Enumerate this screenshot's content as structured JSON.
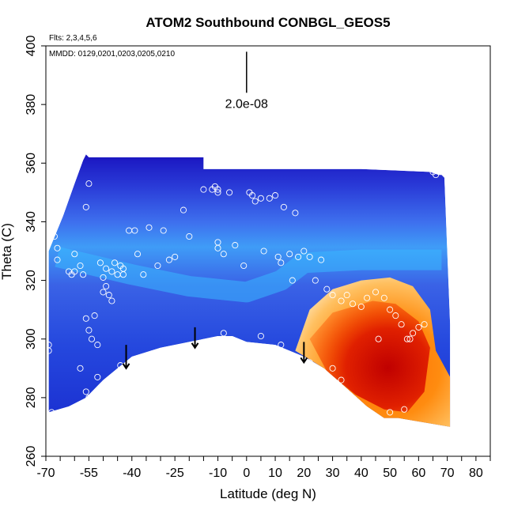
{
  "chart_data": {
    "type": "heatmap",
    "title": "ATOM2 Southbound CONBGL_GEOS5",
    "flights_label": "Flts: 2,3,4,5,6",
    "dates_label": "MMDD: 0129,0201,0203,0205,0210",
    "xlabel": "Latitude (deg N)",
    "ylabel": "Theta (C)",
    "xlim": [
      -70,
      85
    ],
    "ylim": [
      260,
      400
    ],
    "x_ticks": [
      -70,
      -55,
      -40,
      -25,
      -10,
      0,
      10,
      20,
      30,
      40,
      50,
      60,
      70,
      80
    ],
    "x_minor_ticks": [
      -65,
      -60,
      -50,
      -45,
      -35,
      -30,
      -20,
      -15,
      -5,
      5,
      15,
      25,
      35,
      45,
      55,
      65,
      75,
      85
    ],
    "y_ticks": [
      260,
      280,
      300,
      320,
      340,
      360,
      380,
      400
    ],
    "scale_bar": {
      "label": "2.0e-08",
      "x": 0,
      "y_top": 398,
      "y_bottom": 384
    },
    "colors": {
      "low": "#0a0ab4",
      "mid_low": "#4a8cf0",
      "mid": "#ffffff",
      "mid_high": "#ff8a00",
      "high": "#c00000"
    },
    "field_outline": [
      [
        -69,
        275
      ],
      [
        -69,
        330
      ],
      [
        -64,
        342
      ],
      [
        -60,
        353
      ],
      [
        -57,
        361
      ],
      [
        -56,
        363
      ],
      [
        -55,
        362
      ],
      [
        -53,
        362
      ],
      [
        -15,
        362
      ],
      [
        -15,
        358
      ],
      [
        10,
        358
      ],
      [
        20,
        358
      ],
      [
        40,
        358
      ],
      [
        64,
        357
      ],
      [
        67,
        356
      ],
      [
        68,
        356
      ],
      [
        69,
        355
      ],
      [
        70,
        330
      ],
      [
        71,
        305
      ],
      [
        71,
        270
      ],
      [
        53,
        273
      ],
      [
        48,
        273
      ],
      [
        42,
        277
      ],
      [
        34,
        284
      ],
      [
        27,
        290
      ],
      [
        20,
        294
      ],
      [
        10,
        298
      ],
      [
        0,
        299
      ],
      [
        -5,
        301
      ],
      [
        -10,
        301
      ],
      [
        -20,
        299
      ],
      [
        -30,
        297
      ],
      [
        -40,
        294
      ],
      [
        -45,
        290
      ],
      [
        -50,
        286
      ],
      [
        -56,
        280
      ],
      [
        -62,
        277
      ]
    ],
    "warm_region": [
      [
        17,
        296
      ],
      [
        22,
        310
      ],
      [
        30,
        317
      ],
      [
        40,
        320
      ],
      [
        50,
        321
      ],
      [
        58,
        318
      ],
      [
        64,
        310
      ],
      [
        66,
        296
      ],
      [
        71,
        287
      ],
      [
        71,
        270
      ],
      [
        53,
        273
      ],
      [
        48,
        273
      ],
      [
        42,
        277
      ],
      [
        34,
        284
      ],
      [
        27,
        290
      ]
    ],
    "hot_core": [
      [
        22,
        300
      ],
      [
        30,
        309
      ],
      [
        44,
        313
      ],
      [
        52,
        312
      ],
      [
        60,
        306
      ],
      [
        64,
        297
      ],
      [
        62,
        282
      ],
      [
        56,
        275
      ],
      [
        48,
        276
      ],
      [
        38,
        281
      ],
      [
        28,
        289
      ]
    ],
    "blue_band_center": [
      [
        -66,
        328
      ],
      [
        -40,
        322
      ],
      [
        -20,
        318
      ],
      [
        0,
        316
      ],
      [
        12,
        320
      ],
      [
        20,
        326
      ],
      [
        40,
        327
      ],
      [
        68,
        327
      ]
    ],
    "sample_points": [
      [
        -68,
        337
      ],
      [
        -67,
        335
      ],
      [
        -69,
        298
      ],
      [
        -69,
        296
      ],
      [
        -66,
        331
      ],
      [
        -62,
        323
      ],
      [
        -60,
        323
      ],
      [
        -58,
        325
      ],
      [
        -57,
        322
      ],
      [
        -56,
        307
      ],
      [
        -55,
        303
      ],
      [
        -54,
        300
      ],
      [
        -52,
        298
      ],
      [
        -51,
        326
      ],
      [
        -50,
        321
      ],
      [
        -50,
        316
      ],
      [
        -49,
        318
      ],
      [
        -49,
        324
      ],
      [
        -48,
        315
      ],
      [
        -47,
        313
      ],
      [
        -46,
        326
      ],
      [
        -45,
        322
      ],
      [
        -44,
        325
      ],
      [
        -43,
        324
      ],
      [
        -43,
        322
      ],
      [
        -41,
        337
      ],
      [
        -39,
        337
      ],
      [
        -38,
        329
      ],
      [
        -36,
        322
      ],
      [
        -34,
        338
      ],
      [
        -31,
        325
      ],
      [
        -29,
        337
      ],
      [
        -27,
        327
      ],
      [
        -25,
        328
      ],
      [
        -22,
        344
      ],
      [
        -20,
        335
      ],
      [
        -15,
        351
      ],
      [
        -12,
        351
      ],
      [
        -11,
        352
      ],
      [
        -10,
        351
      ],
      [
        -10,
        350
      ],
      [
        -10,
        333
      ],
      [
        -10,
        331
      ],
      [
        -8,
        329
      ],
      [
        -6,
        350
      ],
      [
        -4,
        332
      ],
      [
        -1,
        325
      ],
      [
        1,
        350
      ],
      [
        2,
        349
      ],
      [
        3,
        347
      ],
      [
        5,
        348
      ],
      [
        6,
        330
      ],
      [
        8,
        348
      ],
      [
        10,
        349
      ],
      [
        11,
        328
      ],
      [
        12,
        326
      ],
      [
        13,
        345
      ],
      [
        15,
        329
      ],
      [
        16,
        320
      ],
      [
        17,
        343
      ],
      [
        18,
        328
      ],
      [
        20,
        330
      ],
      [
        22,
        328
      ],
      [
        24,
        320
      ],
      [
        26,
        327
      ],
      [
        28,
        317
      ],
      [
        30,
        315
      ],
      [
        33,
        313
      ],
      [
        35,
        315
      ],
      [
        37,
        312
      ],
      [
        40,
        311
      ],
      [
        42,
        314
      ],
      [
        45,
        316
      ],
      [
        48,
        314
      ],
      [
        50,
        310
      ],
      [
        52,
        308
      ],
      [
        54,
        305
      ],
      [
        56,
        300
      ],
      [
        58,
        302
      ],
      [
        60,
        304
      ],
      [
        62,
        305
      ],
      [
        -58,
        290
      ],
      [
        -56,
        282
      ],
      [
        -55,
        280
      ],
      [
        -52,
        287
      ],
      [
        -44,
        291
      ],
      [
        -39,
        292
      ],
      [
        -33,
        295
      ],
      [
        -24,
        297
      ],
      [
        -8,
        302
      ],
      [
        5,
        301
      ],
      [
        12,
        298
      ],
      [
        22,
        292
      ],
      [
        30,
        290
      ],
      [
        33,
        286
      ],
      [
        46,
        300
      ],
      [
        50,
        275
      ],
      [
        55,
        276
      ],
      [
        57,
        300
      ],
      [
        65,
        357
      ],
      [
        66,
        356
      ],
      [
        -55,
        353
      ],
      [
        -56,
        345
      ],
      [
        -61,
        322
      ],
      [
        -47,
        323
      ],
      [
        -60,
        329
      ],
      [
        -53,
        308
      ],
      [
        -66,
        327
      ],
      [
        -68,
        275
      ]
    ],
    "arrows": [
      {
        "x": -42,
        "y_top": 298,
        "y_bottom": 290
      },
      {
        "x": -18,
        "y_top": 304,
        "y_bottom": 297
      },
      {
        "x": 20,
        "y_top": 299,
        "y_bottom": 292
      }
    ]
  }
}
